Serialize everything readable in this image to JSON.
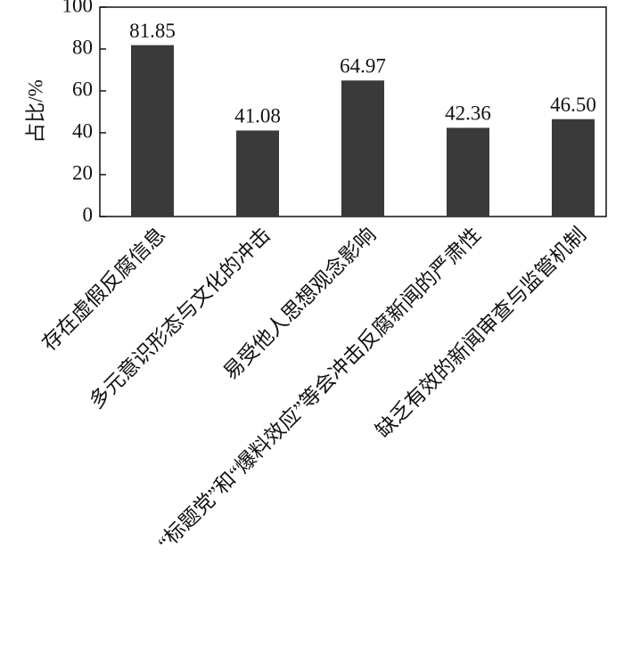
{
  "chart_data": {
    "type": "bar",
    "ylabel": "占比/%",
    "categories": [
      "存在虚假反腐信息",
      "多元意识形态与文化的冲击",
      "易受他人思想观念影响",
      "“标题党”和“爆料效应”等会冲击反腐新闻的严肃性",
      "缺乏有效的新闻审查与监管机制"
    ],
    "values": [
      81.85,
      41.08,
      64.97,
      42.36,
      46.5
    ],
    "value_labels": [
      "81.85",
      "41.08",
      "64.97",
      "42.36",
      "46.50"
    ],
    "color": "#3a3a3a",
    "ylim": [
      0,
      100
    ],
    "yticks": [
      0,
      20,
      40,
      60,
      80,
      100
    ],
    "grid": false
  }
}
